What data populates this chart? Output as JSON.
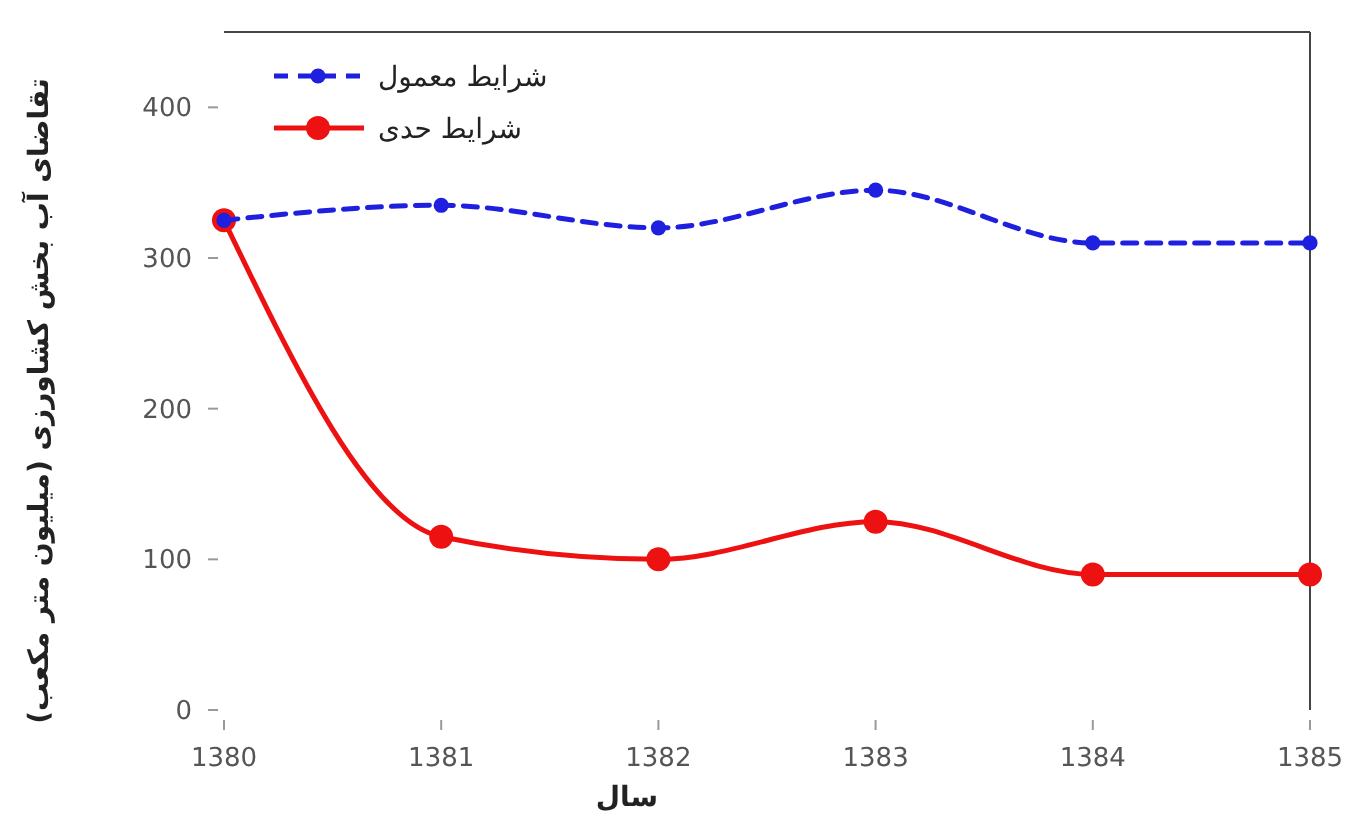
{
  "chart_data": {
    "type": "line",
    "xlabel": "سال",
    "ylabel": "تقاضای آب بخش کشاورزی (میلیون متر مکعب)",
    "categories": [
      "1380",
      "1381",
      "1382",
      "1383",
      "1384",
      "1385"
    ],
    "series": [
      {
        "name": "شرایط معمول",
        "color": "#1f1fe0",
        "line_style": "dashed",
        "values": [
          325,
          335,
          320,
          345,
          310,
          310
        ]
      },
      {
        "name": "شرایط حدی",
        "color": "#ee1111",
        "line_style": "solid",
        "values": [
          325,
          115,
          100,
          125,
          90,
          90
        ]
      }
    ],
    "ylim": [
      0,
      450
    ],
    "yticks": [
      0,
      100,
      200,
      300,
      400
    ],
    "grid": false,
    "legend": "top left",
    "marker": "circle"
  }
}
